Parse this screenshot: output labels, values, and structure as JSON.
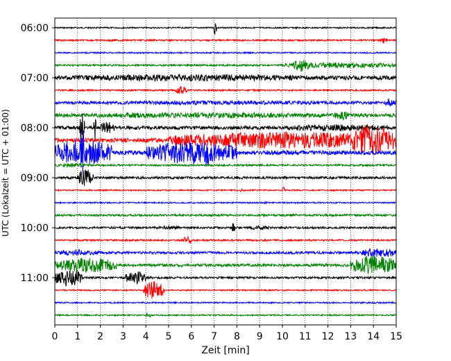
{
  "chart_data": {
    "type": "line",
    "title": "",
    "xlabel": "Zeit  [min]",
    "ylabel": "UTC (Lokalzeit = UTC + 01:00)",
    "xlim": [
      0,
      15
    ],
    "x_ticks": [
      "0",
      "1",
      "2",
      "3",
      "4",
      "5",
      "6",
      "7",
      "8",
      "9",
      "10",
      "11",
      "12",
      "13",
      "14",
      "15"
    ],
    "y_ticks": [
      "06:00",
      "07:00",
      "08:00",
      "09:00",
      "10:00",
      "11:00"
    ],
    "grid": "vertical dotted",
    "legend": "none",
    "row_interval_min": 15,
    "colors": [
      "#000000",
      "#ff0000",
      "#0000ff",
      "#008000"
    ],
    "rows": [
      {
        "time": "06:00",
        "color": "#000000",
        "amp": 1.0,
        "events": [
          {
            "start": 7.0,
            "end": 7.1,
            "amp": 12
          }
        ]
      },
      {
        "time": "06:15",
        "color": "#ff0000",
        "amp": 1.2,
        "events": [
          {
            "start": 2.3,
            "end": 2.6,
            "amp": 2
          },
          {
            "start": 14.3,
            "end": 14.6,
            "amp": 4
          }
        ]
      },
      {
        "time": "06:30",
        "color": "#0000ff",
        "amp": 1.0,
        "events": []
      },
      {
        "time": "06:45",
        "color": "#008000",
        "amp": 1.3,
        "events": [
          {
            "start": 10.0,
            "end": 15.0,
            "amp": 4
          },
          {
            "start": 10.5,
            "end": 11.2,
            "amp": 9
          }
        ]
      },
      {
        "time": "07:00",
        "color": "#000000",
        "amp": 3.0,
        "events": [
          {
            "start": 0.0,
            "end": 12.0,
            "amp": 5
          }
        ]
      },
      {
        "time": "07:15",
        "color": "#ff0000",
        "amp": 1.2,
        "events": [
          {
            "start": 5.3,
            "end": 5.8,
            "amp": 6
          }
        ]
      },
      {
        "time": "07:30",
        "color": "#0000ff",
        "amp": 1.5,
        "events": [
          {
            "start": 0.0,
            "end": 15.0,
            "amp": 3
          },
          {
            "start": 14.5,
            "end": 15.0,
            "amp": 6
          }
        ]
      },
      {
        "time": "07:45",
        "color": "#008000",
        "amp": 2.5,
        "events": [
          {
            "start": 0.0,
            "end": 13.0,
            "amp": 4
          },
          {
            "start": 12.3,
            "end": 12.9,
            "amp": 7
          }
        ]
      },
      {
        "time": "08:00",
        "color": "#000000",
        "amp": 2.5,
        "events": [
          {
            "start": 1.1,
            "end": 1.3,
            "amp": 22
          },
          {
            "start": 1.7,
            "end": 1.8,
            "amp": 22
          },
          {
            "start": 2.0,
            "end": 2.6,
            "amp": 9
          },
          {
            "start": 10.0,
            "end": 15.0,
            "amp": 5
          }
        ]
      },
      {
        "time": "08:15",
        "color": "#ff0000",
        "amp": 3.0,
        "events": [
          {
            "start": 5.0,
            "end": 15.0,
            "amp": 12
          },
          {
            "start": 12.8,
            "end": 15.0,
            "amp": 22
          }
        ]
      },
      {
        "time": "08:30",
        "color": "#0000ff",
        "amp": 3.0,
        "events": [
          {
            "start": 0.0,
            "end": 2.5,
            "amp": 20
          },
          {
            "start": 4.0,
            "end": 8.0,
            "amp": 16
          },
          {
            "start": 1.1,
            "end": 1.3,
            "amp": 38
          },
          {
            "start": 6.6,
            "end": 6.8,
            "amp": 26
          }
        ]
      },
      {
        "time": "08:45",
        "color": "#008000",
        "amp": 1.3,
        "events": [
          {
            "start": 0.0,
            "end": 1.5,
            "amp": 3
          }
        ]
      },
      {
        "time": "09:00",
        "color": "#000000",
        "amp": 1.8,
        "events": [
          {
            "start": 1.0,
            "end": 1.7,
            "amp": 12
          }
        ]
      },
      {
        "time": "09:15",
        "color": "#ff0000",
        "amp": 1.0,
        "events": [
          {
            "start": 10.0,
            "end": 10.1,
            "amp": 5
          },
          {
            "start": 8.0,
            "end": 8.3,
            "amp": 3
          }
        ]
      },
      {
        "time": "09:30",
        "color": "#0000ff",
        "amp": 1.0,
        "events": [
          {
            "start": 9.2,
            "end": 9.3,
            "amp": 3
          }
        ]
      },
      {
        "time": "09:45",
        "color": "#008000",
        "amp": 1.5,
        "events": []
      },
      {
        "time": "10:00",
        "color": "#000000",
        "amp": 1.5,
        "events": [
          {
            "start": 7.8,
            "end": 7.9,
            "amp": 9
          },
          {
            "start": 4.5,
            "end": 5.5,
            "amp": 3
          },
          {
            "start": 8.5,
            "end": 9.5,
            "amp": 3
          }
        ]
      },
      {
        "time": "10:15",
        "color": "#ff0000",
        "amp": 1.3,
        "events": [
          {
            "start": 5.6,
            "end": 6.0,
            "amp": 6
          }
        ]
      },
      {
        "time": "10:30",
        "color": "#0000ff",
        "amp": 1.8,
        "events": [
          {
            "start": 0.0,
            "end": 2.0,
            "amp": 4
          },
          {
            "start": 13.5,
            "end": 15.0,
            "amp": 7
          }
        ]
      },
      {
        "time": "10:45",
        "color": "#008000",
        "amp": 2.0,
        "events": [
          {
            "start": 0.0,
            "end": 2.7,
            "amp": 11
          },
          {
            "start": 13.0,
            "end": 15.0,
            "amp": 14
          }
        ]
      },
      {
        "time": "11:00",
        "color": "#000000",
        "amp": 1.5,
        "events": [
          {
            "start": 0.0,
            "end": 1.2,
            "amp": 13
          },
          {
            "start": 3.1,
            "end": 4.0,
            "amp": 9
          }
        ]
      },
      {
        "time": "11:15",
        "color": "#ff0000",
        "amp": 1.0,
        "events": [
          {
            "start": 3.9,
            "end": 4.8,
            "amp": 13
          }
        ]
      },
      {
        "time": "11:30",
        "color": "#0000ff",
        "amp": 1.0,
        "events": []
      },
      {
        "time": "11:45",
        "color": "#008000",
        "amp": 1.0,
        "events": [
          {
            "start": 4.0,
            "end": 4.2,
            "amp": 4
          }
        ]
      }
    ]
  }
}
